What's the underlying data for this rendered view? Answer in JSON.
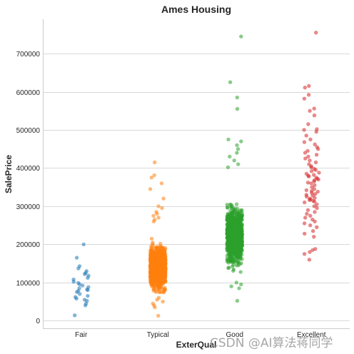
{
  "chart_data": {
    "type": "scatter",
    "subtype": "strip",
    "title": "Ames Housing",
    "xlabel": "ExterQual",
    "ylabel": "SalePrice",
    "categories": [
      "Fair",
      "Typical",
      "Good",
      "Excellent"
    ],
    "ylim": [
      -20000,
      790000
    ],
    "yticks": [
      0,
      100000,
      200000,
      300000,
      400000,
      500000,
      600000,
      700000
    ],
    "ytick_labels": [
      "0",
      "100000",
      "200000",
      "300000",
      "400000",
      "500000",
      "600000",
      "700000"
    ],
    "grid": "horizontal",
    "legend": "none",
    "colors": [
      "#1f77b4",
      "#ff7f0e",
      "#2ca02c",
      "#d62728"
    ],
    "groups": [
      {
        "category": "Fair",
        "approx_count": 30,
        "values": [
          200000,
          165000,
          143000,
          137000,
          130000,
          125000,
          122000,
          118000,
          112000,
          108000,
          102000,
          99000,
          95000,
          92000,
          88000,
          85000,
          82000,
          80000,
          78000,
          75000,
          70000,
          65000,
          62000,
          58000,
          55000,
          52000,
          45000,
          40000,
          14000
        ]
      },
      {
        "category": "Typical",
        "approx_count": 1400,
        "median": 140000,
        "q1": 115000,
        "q3": 165000,
        "outliers": [
          415000,
          381000,
          375000,
          360000,
          345000,
          320000,
          300000,
          295000,
          285000,
          280000,
          275000,
          270000,
          265000,
          260000,
          60000,
          55000,
          50000,
          45000,
          40000,
          35000,
          13000
        ]
      },
      {
        "category": "Good",
        "approx_count": 950,
        "median": 220000,
        "q1": 185000,
        "q3": 260000,
        "outliers": [
          745000,
          625000,
          585000,
          555000,
          475000,
          470000,
          460000,
          450000,
          440000,
          430000,
          420000,
          410000,
          402000,
          100000,
          95000,
          90000,
          85000,
          52000
        ]
      },
      {
        "category": "Excellent",
        "approx_count": 100,
        "values": [
          755000,
          615000,
          611000,
          592000,
          582000,
          556000,
          550000,
          538000,
          515000,
          502000,
          500000,
          495000,
          485000,
          475000,
          468000,
          462000,
          455000,
          450000,
          445000,
          440000,
          435000,
          430000,
          425000,
          420000,
          415000,
          410000,
          405000,
          402000,
          398000,
          395000,
          392000,
          388000,
          385000,
          382000,
          380000,
          378000,
          375000,
          372000,
          370000,
          368000,
          365000,
          362000,
          360000,
          355000,
          350000,
          345000,
          342000,
          340000,
          338000,
          335000,
          332000,
          330000,
          328000,
          325000,
          322000,
          320000,
          318000,
          316000,
          314000,
          312000,
          310000,
          305000,
          300000,
          295000,
          290000,
          285000,
          280000,
          275000,
          270000,
          265000,
          260000,
          255000,
          250000,
          245000,
          235000,
          228000,
          220000,
          188000,
          185000,
          180000,
          175000,
          160000
        ]
      }
    ]
  },
  "watermark": "CSDN @AI算法蒋同学"
}
